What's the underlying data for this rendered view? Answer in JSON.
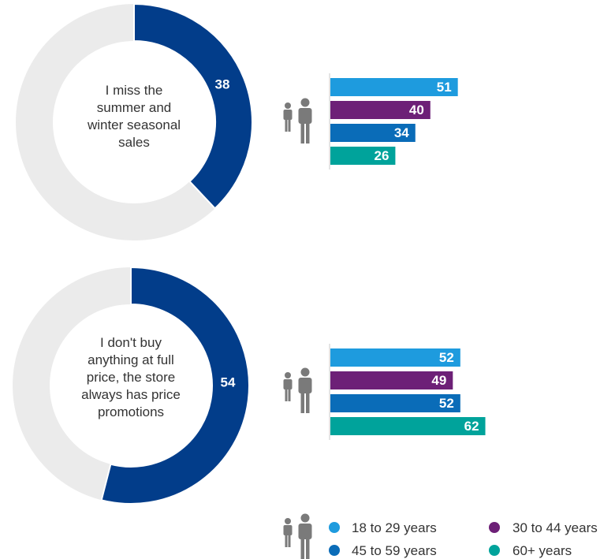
{
  "chart_data": [
    {
      "type": "donut",
      "center_label": [
        "I miss the",
        "summer and",
        "winter seasonal",
        "sales"
      ],
      "value": 38,
      "max": 100,
      "colors": {
        "value": "#023d8a",
        "remainder": "#ebebeb"
      },
      "age_bars": {
        "type": "bar",
        "orientation": "horizontal",
        "categories": [
          "18 to 29 years",
          "30 to 44 years",
          "45 to 59 years",
          "60+ years"
        ],
        "values": [
          51,
          40,
          34,
          26
        ]
      }
    },
    {
      "type": "donut",
      "center_label": [
        "I don't buy",
        "anything at full",
        "price, the store",
        "always has price",
        "promotions"
      ],
      "value": 54,
      "max": 100,
      "colors": {
        "value": "#023d8a",
        "remainder": "#ebebeb"
      },
      "age_bars": {
        "type": "bar",
        "orientation": "horizontal",
        "categories": [
          "18 to 29 years",
          "30 to 44 years",
          "45 to 59 years",
          "60+ years"
        ],
        "values": [
          52,
          49,
          52,
          62
        ]
      }
    }
  ],
  "legend": {
    "items": [
      {
        "label": "18 to 29 years",
        "color": "#1e9bde"
      },
      {
        "label": "30 to 44 years",
        "color": "#6d2077"
      },
      {
        "label": "45 to 59 years",
        "color": "#0a6cb8"
      },
      {
        "label": "60+ years",
        "color": "#00a39b"
      }
    ],
    "icon": "people-icon"
  }
}
